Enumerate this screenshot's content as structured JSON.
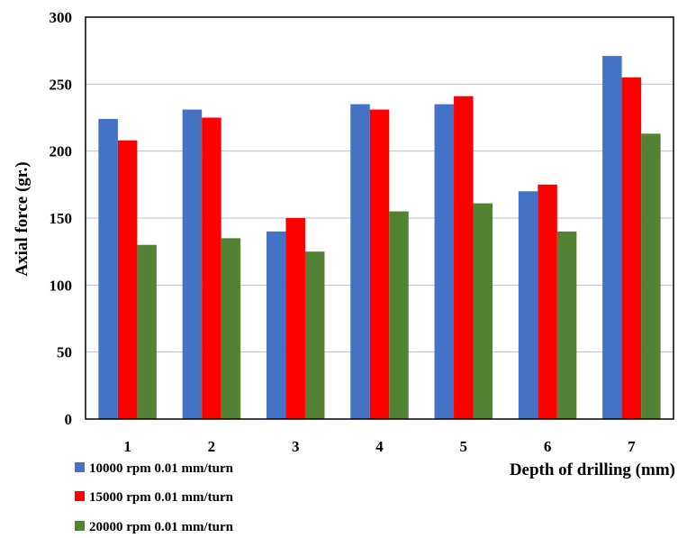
{
  "chart_data": {
    "type": "bar",
    "categories": [
      "1",
      "2",
      "3",
      "4",
      "5",
      "6",
      "7"
    ],
    "series": [
      {
        "name": "10000 rpm 0.01 mm/turn",
        "color": "#4472C4",
        "values": [
          224,
          231,
          140,
          235,
          235,
          170,
          271
        ]
      },
      {
        "name": "15000 rpm 0.01 mm/turn",
        "color": "#FF0000",
        "values": [
          208,
          225,
          150,
          231,
          241,
          175,
          255
        ]
      },
      {
        "name": "20000 rpm 0.01 mm/turn",
        "color": "#548235",
        "values": [
          130,
          135,
          125,
          155,
          161,
          140,
          213
        ]
      }
    ],
    "xlabel": "Depth of drilling (mm)",
    "ylabel": "Axial force (gr.)",
    "ylim": [
      0,
      300
    ],
    "yticks": [
      "0",
      "50",
      "100",
      "150",
      "200",
      "250",
      "300"
    ],
    "grid": true,
    "legend_position": "bottom-left"
  }
}
